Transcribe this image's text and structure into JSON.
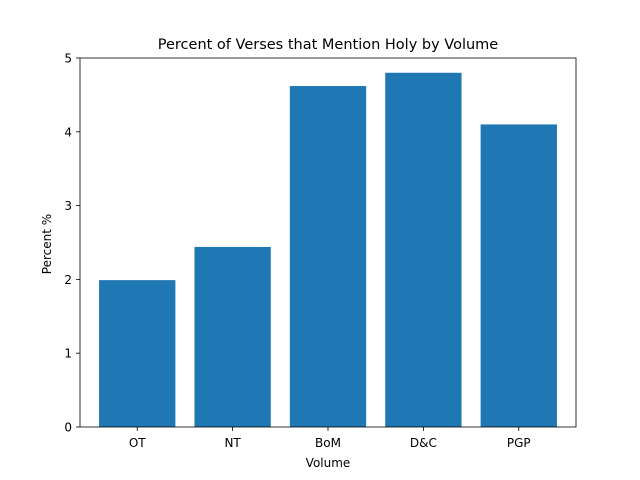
{
  "chart_data": {
    "type": "bar",
    "title": "Percent of Verses that Mention Holy by Volume",
    "xlabel": "Volume",
    "ylabel": "Percent %",
    "categories": [
      "OT",
      "NT",
      "BoM",
      "D&C",
      "PGP"
    ],
    "values": [
      1.99,
      2.44,
      4.62,
      4.8,
      4.1
    ],
    "ylim": [
      0,
      5
    ],
    "yticks": [
      "0",
      "1",
      "2",
      "3",
      "4",
      "5"
    ],
    "bar_color": "#1f77b4",
    "grid": false,
    "legend": "none"
  }
}
